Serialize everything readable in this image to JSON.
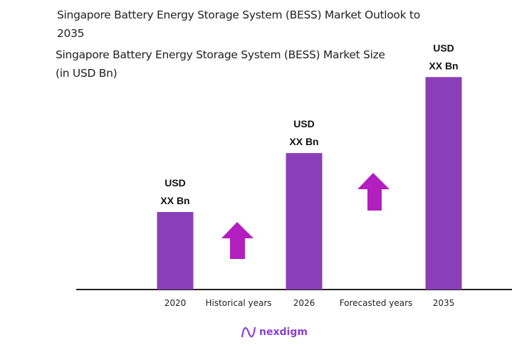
{
  "chart_data": {
    "type": "bar",
    "title": "Singapore Battery Energy Storage System (BESS)  Market Outlook to 2035",
    "subtitle": "Singapore Battery Energy Storage System (BESS) Market Size (in USD Bn)",
    "categories": [
      "2020",
      "2026",
      "2035"
    ],
    "values": [
      1.0,
      1.76,
      2.74
    ],
    "data_labels": [
      {
        "line1": "USD",
        "line2": "XX Bn"
      },
      {
        "line1": "USD",
        "line2": "XX Bn"
      },
      {
        "line1": "USD",
        "line2": "XX Bn"
      }
    ],
    "period_labels": [
      "Historical years",
      "Forecasted years"
    ],
    "grid": false,
    "y_axis_visible": false,
    "colors": {
      "bar": "#8a3fb8",
      "arrow": "#b31fbf",
      "axis": "#222222"
    }
  },
  "branding": {
    "logo_text": "nexdigm",
    "logo_icon": "nexdigm-wave-logo"
  }
}
